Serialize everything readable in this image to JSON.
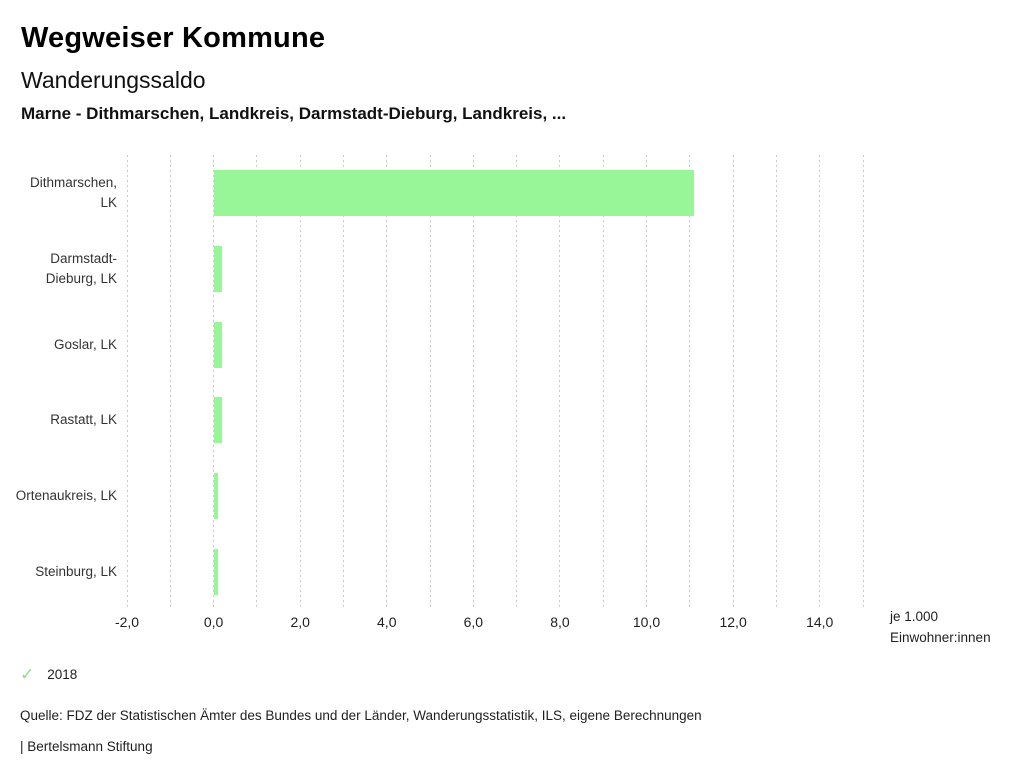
{
  "header": {
    "title": "Wegweiser Kommune",
    "subtitle": "Wanderungssaldo",
    "selection": "Marne - Dithmarschen, Landkreis, Darmstadt-Dieburg, Landkreis, ..."
  },
  "chart_data": {
    "type": "bar",
    "orientation": "horizontal",
    "title": "Wanderungssaldo",
    "categories": [
      "Dithmarschen, LK",
      "Darmstadt-Dieburg, LK",
      "Goslar, LK",
      "Rastatt, LK",
      "Ortenaukreis, LK",
      "Steinburg, LK"
    ],
    "series": [
      {
        "name": "2018",
        "values": [
          11.1,
          0.2,
          0.2,
          0.2,
          0.1,
          0.1
        ]
      }
    ],
    "xlim": [
      -2,
      15
    ],
    "grid_step": 1,
    "grid": "on",
    "tick_values": [
      -2,
      0,
      2,
      4,
      6,
      8,
      10,
      12,
      14
    ],
    "tick_labels": [
      "-2,0",
      "0,0",
      "2,0",
      "4,0",
      "6,0",
      "8,0",
      "10,0",
      "12,0",
      "14,0"
    ],
    "xlabel_line1": "je 1.000",
    "xlabel_line2": "Einwohner:innen",
    "bar_color": "#98f598",
    "grid_color": "#c9c9c9",
    "legend_position": "bottom-left"
  },
  "legend": {
    "check_icon": "check-icon",
    "check_glyph": "✓",
    "check_color": "#8ce08c",
    "year_label": "2018"
  },
  "footer": {
    "source": "Quelle: FDZ der Statistischen Ämter des Bundes und der Länder, Wanderungsstatistik, ILS, eigene Berechnungen",
    "attribution": "| Bertelsmann Stiftung"
  }
}
